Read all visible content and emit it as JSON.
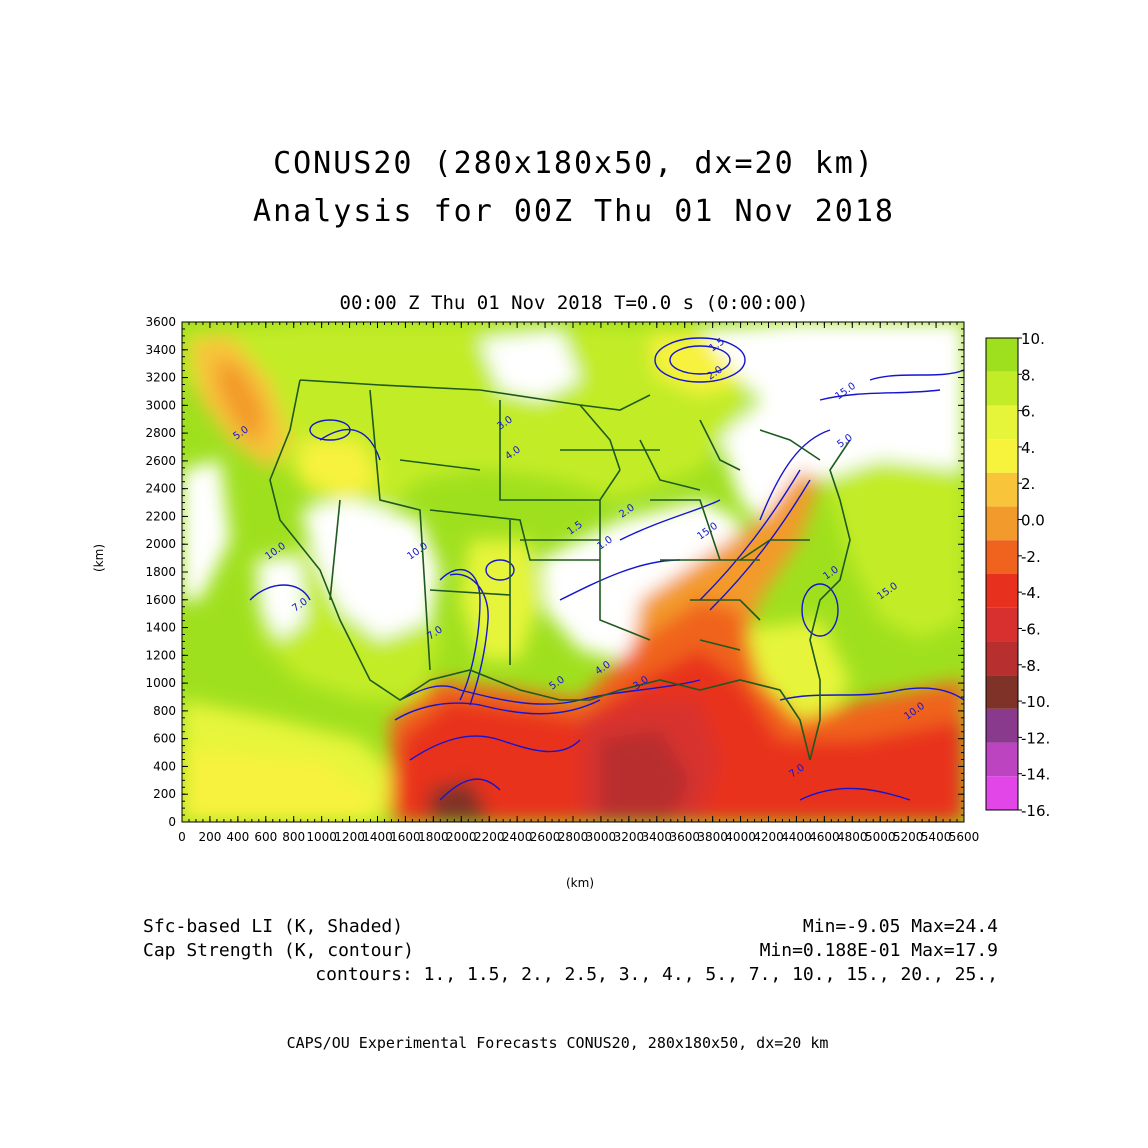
{
  "header": {
    "title_line1": "CONUS20 (280x180x50, dx=20 km)",
    "title_line2": "Analysis for 00Z Thu 01 Nov 2018",
    "subtitle": "00:00 Z Thu 01 Nov 2018    T=0.0 s (0:00:00)"
  },
  "axes": {
    "x_label": "(km)",
    "y_label": "(km)",
    "x_ticks": [
      "0",
      "200",
      "400",
      "600",
      "800",
      "1000",
      "1200",
      "1400",
      "1600",
      "1800",
      "2000",
      "2200",
      "2400",
      "2600",
      "2800",
      "3000",
      "3200",
      "3400",
      "3600",
      "3800",
      "4000",
      "4200",
      "4400",
      "4600",
      "4800",
      "5000",
      "5200",
      "5400",
      "5600"
    ],
    "y_ticks": [
      "0",
      "200",
      "400",
      "600",
      "800",
      "1000",
      "1200",
      "1400",
      "1600",
      "1800",
      "2000",
      "2200",
      "2400",
      "2600",
      "2800",
      "3000",
      "3200",
      "3400",
      "3600"
    ],
    "x_range": [
      0,
      5600
    ],
    "y_range": [
      0,
      3600
    ]
  },
  "colorbar": {
    "labels": [
      "10.",
      "8.",
      "6.",
      "4.",
      "2.",
      "0.0",
      "-2.",
      "-4.",
      "-6.",
      "-8.",
      "-10.",
      "-12.",
      "-14.",
      "-16."
    ],
    "colors": [
      "#9fe01e",
      "#c2ec28",
      "#e6f53a",
      "#f7f23c",
      "#f8c43a",
      "#f39a2c",
      "#f0631e",
      "#e8301e",
      "#d8302e",
      "#b82f2f",
      "#7f3328",
      "#8a3a8c",
      "#bc44c0",
      "#e246e8"
    ]
  },
  "contour_labels": [
    "15.0",
    "10.0",
    "7.0",
    "5.0",
    "4.0",
    "3.0",
    "2.0",
    "1.5",
    "1.0"
  ],
  "footer": {
    "left_line1": "Sfc-based LI (K, Shaded)",
    "left_line2": "Cap Strength (K, contour)",
    "right_line1": "Min=-9.05 Max=24.4",
    "right_line2": "Min=0.188E-01 Max=17.9",
    "contours": "contours: 1., 1.5, 2., 2.5, 3., 4., 5., 7., 10., 15., 20., 25.,",
    "credits": "CAPS/OU Experimental Forecasts  CONUS20, 280x180x50, dx=20 km"
  },
  "theme": {
    "contour_color": "#1414d2",
    "boundary_color": "#1e5a1e"
  }
}
